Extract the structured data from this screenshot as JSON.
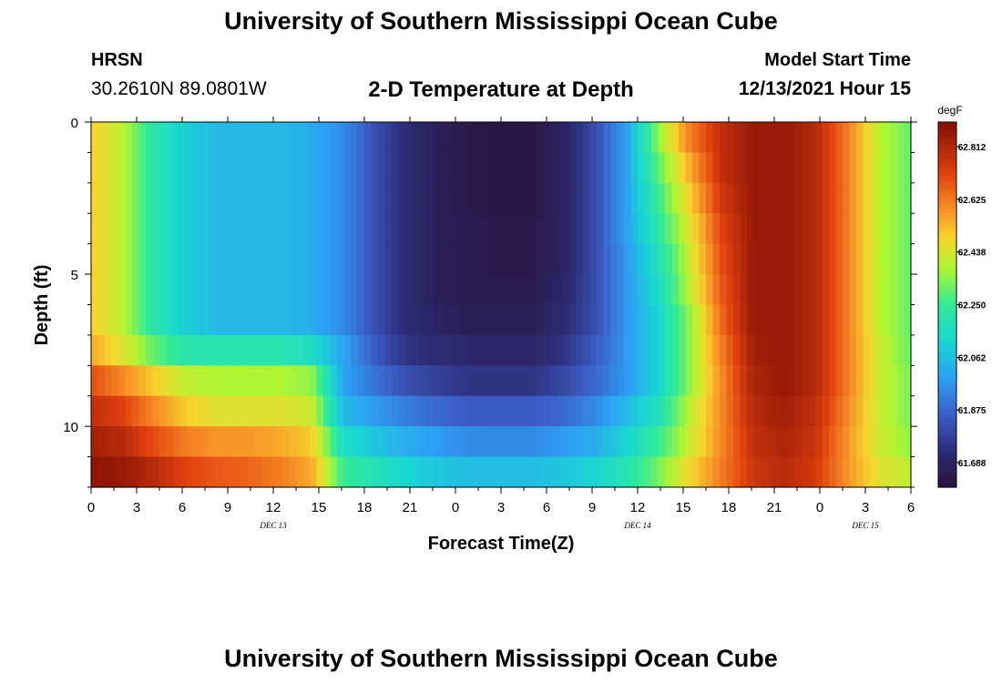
{
  "header": {
    "title": "University of Southern Mississippi Ocean Cube",
    "station": "HRSN",
    "coords": "30.2610N  89.0801W",
    "subtitle": "2-D Temperature at Depth",
    "model_start_label": "Model Start Time",
    "model_start_value": "12/13/2021 Hour 15"
  },
  "footer": {
    "title": "University of Southern Mississippi Ocean Cube"
  },
  "chart_data": {
    "type": "heatmap",
    "title": "2-D Temperature at Depth",
    "xlabel": "Forecast Time(Z)",
    "ylabel": "Depth (ft)",
    "x_tick_labels": [
      "0",
      "3",
      "6",
      "9",
      "12",
      "15",
      "18",
      "21",
      "0",
      "3",
      "6",
      "9",
      "12",
      "15",
      "18",
      "21",
      "0",
      "3",
      "6"
    ],
    "date_labels": [
      "DEC 13",
      "DEC 14",
      "DEC 15"
    ],
    "y_ticks": [
      0,
      5,
      10
    ],
    "y_range": [
      0,
      12
    ],
    "x_range_hours": [
      0,
      54
    ],
    "colorbar": {
      "unit": "degF",
      "min": 61.6,
      "max": 62.9,
      "ticks": [
        62.812,
        62.625,
        62.438,
        62.25,
        62.062,
        61.875,
        61.688
      ]
    },
    "rows": [
      {
        "depth": 0.5,
        "temps": [
          62.5,
          62.4,
          62.2,
          62.1,
          62.05,
          62.05,
          62.05,
          62.02,
          61.95,
          61.82,
          61.72,
          61.66,
          61.63,
          61.62,
          61.62,
          61.68,
          61.82,
          62.0,
          62.35,
          62.62,
          62.78,
          62.86,
          62.86,
          62.8,
          62.62,
          62.4,
          62.3
        ]
      },
      {
        "depth": 1.5,
        "temps": [
          62.5,
          62.4,
          62.2,
          62.1,
          62.05,
          62.05,
          62.05,
          62.02,
          61.95,
          61.82,
          61.72,
          61.66,
          61.63,
          61.62,
          61.62,
          61.68,
          61.82,
          62.0,
          62.3,
          62.55,
          62.78,
          62.86,
          62.86,
          62.8,
          62.62,
          62.4,
          62.3
        ]
      },
      {
        "depth": 2.5,
        "temps": [
          62.5,
          62.4,
          62.2,
          62.1,
          62.05,
          62.05,
          62.05,
          62.02,
          61.95,
          61.82,
          61.72,
          61.66,
          61.63,
          61.62,
          61.62,
          61.68,
          61.82,
          62.0,
          62.25,
          62.5,
          62.75,
          62.86,
          62.86,
          62.8,
          62.62,
          62.4,
          62.3
        ]
      },
      {
        "depth": 3.5,
        "temps": [
          62.5,
          62.4,
          62.2,
          62.1,
          62.05,
          62.05,
          62.05,
          62.02,
          61.95,
          61.82,
          61.72,
          61.66,
          61.64,
          61.63,
          61.63,
          61.68,
          61.82,
          62.0,
          62.22,
          62.45,
          62.72,
          62.86,
          62.86,
          62.8,
          62.62,
          62.4,
          62.3
        ]
      },
      {
        "depth": 4.5,
        "temps": [
          62.5,
          62.4,
          62.2,
          62.1,
          62.05,
          62.05,
          62.05,
          62.02,
          61.95,
          61.82,
          61.72,
          61.66,
          61.64,
          61.63,
          61.63,
          61.68,
          61.82,
          61.98,
          62.18,
          62.42,
          62.7,
          62.86,
          62.86,
          62.8,
          62.62,
          62.4,
          62.3
        ]
      },
      {
        "depth": 5.5,
        "temps": [
          62.5,
          62.4,
          62.2,
          62.1,
          62.05,
          62.05,
          62.05,
          62.02,
          61.95,
          61.82,
          61.72,
          61.66,
          61.64,
          61.64,
          61.64,
          61.7,
          61.82,
          61.98,
          62.15,
          62.4,
          62.68,
          62.86,
          62.86,
          62.8,
          62.62,
          62.4,
          62.3
        ]
      },
      {
        "depth": 6.5,
        "temps": [
          62.5,
          62.4,
          62.2,
          62.1,
          62.05,
          62.05,
          62.05,
          62.02,
          61.95,
          61.82,
          61.72,
          61.68,
          61.66,
          61.66,
          61.66,
          61.72,
          61.82,
          61.98,
          62.12,
          62.35,
          62.65,
          62.86,
          62.86,
          62.8,
          62.62,
          62.4,
          62.3
        ]
      },
      {
        "depth": 7.5,
        "temps": [
          62.55,
          62.45,
          62.3,
          62.2,
          62.2,
          62.2,
          62.2,
          62.15,
          62.0,
          61.85,
          61.75,
          61.72,
          61.7,
          61.7,
          61.7,
          61.75,
          61.85,
          61.98,
          62.12,
          62.35,
          62.62,
          62.84,
          62.86,
          62.8,
          62.62,
          62.42,
          62.3
        ]
      },
      {
        "depth": 8.5,
        "temps": [
          62.7,
          62.6,
          62.5,
          62.4,
          62.38,
          62.38,
          62.38,
          62.35,
          62.0,
          61.9,
          61.82,
          61.78,
          61.75,
          61.75,
          61.75,
          61.8,
          61.88,
          61.98,
          62.12,
          62.35,
          62.6,
          62.82,
          62.86,
          62.8,
          62.62,
          62.42,
          62.32
        ]
      },
      {
        "depth": 9.5,
        "temps": [
          62.78,
          62.72,
          62.6,
          62.5,
          62.45,
          62.45,
          62.45,
          62.42,
          62.05,
          61.98,
          61.92,
          61.88,
          61.85,
          61.85,
          61.85,
          61.88,
          61.95,
          62.05,
          62.18,
          62.4,
          62.6,
          62.8,
          62.84,
          62.78,
          62.6,
          62.42,
          62.32
        ]
      },
      {
        "depth": 10.5,
        "temps": [
          62.84,
          62.8,
          62.7,
          62.62,
          62.58,
          62.58,
          62.55,
          62.5,
          62.15,
          62.08,
          62.02,
          61.98,
          61.95,
          61.95,
          61.95,
          61.98,
          62.02,
          62.12,
          62.25,
          62.42,
          62.6,
          62.78,
          62.82,
          62.76,
          62.58,
          62.42,
          62.35
        ]
      },
      {
        "depth": 11.5,
        "temps": [
          62.88,
          62.86,
          62.8,
          62.72,
          62.68,
          62.66,
          62.62,
          62.55,
          62.25,
          62.18,
          62.12,
          62.08,
          62.06,
          62.06,
          62.06,
          62.08,
          62.12,
          62.2,
          62.32,
          62.48,
          62.62,
          62.76,
          62.8,
          62.74,
          62.58,
          62.45,
          62.4
        ]
      }
    ]
  }
}
